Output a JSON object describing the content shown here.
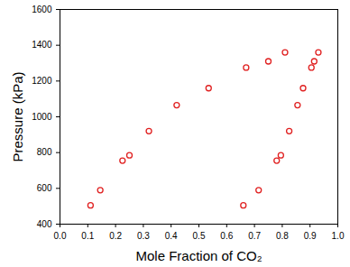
{
  "chart_data": {
    "type": "scatter",
    "x_label": "Mole Fraction of CO₂",
    "y_label": "Pressure (kPa)",
    "x": [
      0.11,
      0.145,
      0.225,
      0.25,
      0.32,
      0.42,
      0.535,
      0.67,
      0.75,
      0.81,
      0.66,
      0.715,
      0.78,
      0.795,
      0.825,
      0.855,
      0.875,
      0.905,
      0.915,
      0.93
    ],
    "values": [
      505,
      590,
      755,
      785,
      920,
      1065,
      1160,
      1275,
      1310,
      1360,
      505,
      590,
      755,
      785,
      920,
      1065,
      1160,
      1275,
      1310,
      1360
    ],
    "color": "#e02020",
    "marker": "circle_open",
    "xlim": [
      0,
      1
    ],
    "xticks": [
      {
        "value": 0,
        "label": "0.0"
      },
      {
        "value": 0.1,
        "label": "0.1"
      },
      {
        "value": 0.2,
        "label": "0.2"
      },
      {
        "value": 0.3,
        "label": "0.3"
      },
      {
        "value": 0.4,
        "label": "0.4"
      },
      {
        "value": 0.5,
        "label": "0.5"
      },
      {
        "value": 0.6,
        "label": "0.6"
      },
      {
        "value": 0.7,
        "label": "0.7"
      },
      {
        "value": 0.8,
        "label": "0.8"
      },
      {
        "value": 0.9,
        "label": "0.9"
      },
      {
        "value": 1,
        "label": "1.0"
      }
    ],
    "ylim": [
      400,
      1600
    ],
    "yticks": [
      400,
      600,
      800,
      1000,
      1200,
      1400,
      1600
    ],
    "grid": false
  }
}
